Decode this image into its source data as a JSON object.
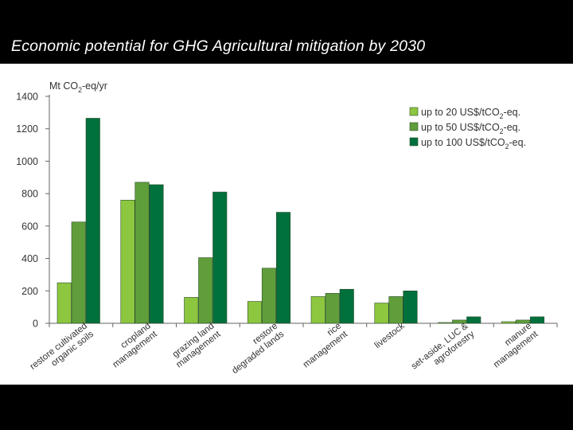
{
  "slide": {
    "title": "Economic potential for GHG Agricultural mitigation by 2030"
  },
  "colors": {
    "background": "#000000",
    "panel": "#ffffff",
    "series": [
      "#8dc63f",
      "#5f9e3a",
      "#00703c"
    ]
  },
  "chart_data": {
    "type": "bar",
    "ylabel": "Mt CO2-eq/yr",
    "ylim": [
      0,
      1400
    ],
    "yticks": [
      0,
      200,
      400,
      600,
      800,
      1000,
      1200,
      1400
    ],
    "categories": [
      [
        "restore cultivated",
        "organic soils"
      ],
      [
        "cropland",
        "management"
      ],
      [
        "grazing land",
        "management"
      ],
      [
        "restore",
        "degraded lands"
      ],
      [
        "rice",
        "management"
      ],
      [
        "livestock"
      ],
      [
        "set-aside, LUC &",
        "agroforestry"
      ],
      [
        "manure",
        "management"
      ]
    ],
    "series": [
      {
        "name": "up to 20 US$/tCO2-eq.",
        "values": [
          250,
          760,
          160,
          135,
          165,
          125,
          5,
          10
        ]
      },
      {
        "name": "up to 50 US$/tCO2-eq.",
        "values": [
          625,
          870,
          405,
          340,
          185,
          165,
          20,
          20
        ]
      },
      {
        "name": "up to 100 US$/tCO2-eq.",
        "values": [
          1265,
          855,
          810,
          685,
          210,
          200,
          40,
          40
        ]
      }
    ],
    "legend_position": "top-right",
    "grid": false
  }
}
